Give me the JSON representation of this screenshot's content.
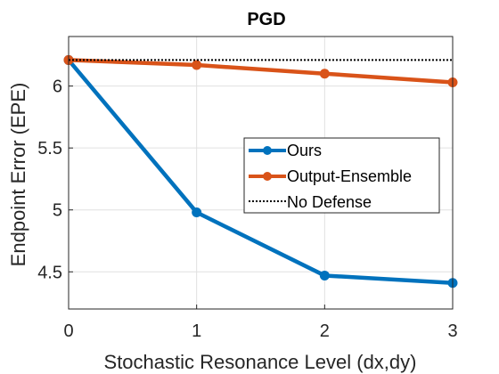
{
  "chart_data": {
    "type": "line",
    "title": "PGD",
    "xlabel": "Stochastic Resonance Level (dx,dy)",
    "ylabel": "Endpoint Error (EPE)",
    "x": [
      0,
      1,
      2,
      3
    ],
    "xlim": [
      0,
      3
    ],
    "ylim": [
      4.2,
      6.4
    ],
    "xticks": [
      "0",
      "1",
      "2",
      "3"
    ],
    "yticks": [
      "4.5",
      "5",
      "5.5",
      "6"
    ],
    "grid": true,
    "legend_position": "right",
    "series": [
      {
        "name": "Ours",
        "values": [
          6.21,
          4.98,
          4.47,
          4.41
        ],
        "color": "#0072BD",
        "style": "solid-marker"
      },
      {
        "name": "Output-Ensemble",
        "values": [
          6.21,
          6.17,
          6.1,
          6.03
        ],
        "color": "#D95319",
        "style": "solid-marker"
      },
      {
        "name": "No Defense",
        "values": [
          6.21,
          6.21,
          6.21,
          6.21
        ],
        "color": "#000000",
        "style": "dotted"
      }
    ]
  }
}
